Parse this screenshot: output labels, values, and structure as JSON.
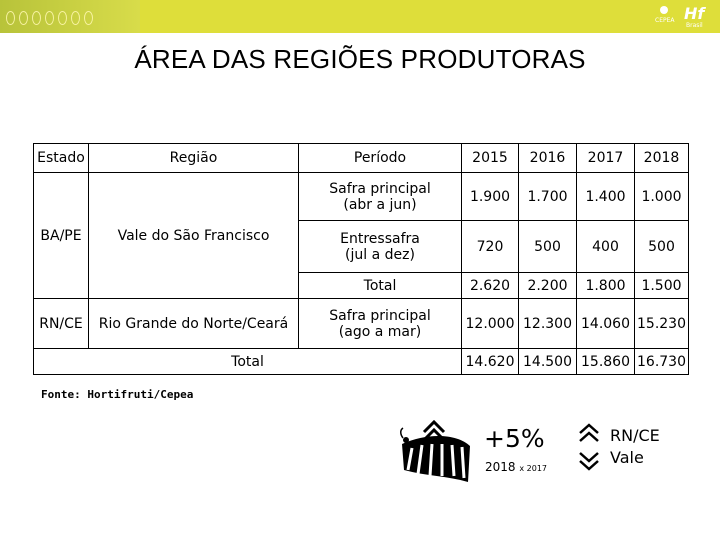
{
  "title": "ÁREA DAS REGIÕES PRODUTORAS",
  "table": {
    "headers": [
      "Estado",
      "Região",
      "Período",
      "2015",
      "2016",
      "2017",
      "2018"
    ],
    "ba_pe": {
      "estado": "BA/PE",
      "regiao": "Vale do São Francisco",
      "rows": [
        {
          "periodo": "Safra principal (abr a jun)",
          "values": [
            "1.900",
            "1.700",
            "1.400",
            "1.000"
          ]
        },
        {
          "periodo": "Entressafra (jul a dez)",
          "values": [
            "720",
            "500",
            "400",
            "500"
          ]
        },
        {
          "periodo": "Total",
          "values": [
            "2.620",
            "2.200",
            "1.800",
            "1.500"
          ]
        }
      ]
    },
    "rn_ce": {
      "estado": "RN/CE",
      "regiao": "Rio Grande do Norte/Ceará",
      "periodo": "Safra principal (ago a mar)",
      "values": [
        "12.000",
        "12.300",
        "14.060",
        "15.230"
      ]
    },
    "total": {
      "label": "Total",
      "values": [
        "14.620",
        "14.500",
        "15.860",
        "16.730"
      ]
    }
  },
  "source": "Fonte: Hortifruti/Cepea",
  "summary": {
    "percent": "+5%",
    "comparison_year": "2018",
    "comparison_rest": "x 2017",
    "legend_up": "RN/CE",
    "legend_down": "Vale"
  },
  "logos": {
    "cepea": "CEPEA",
    "hf": "Hf",
    "hf_sub": "Brasil"
  },
  "colors": {
    "banner": "#dede3a",
    "accent": "#000000"
  }
}
